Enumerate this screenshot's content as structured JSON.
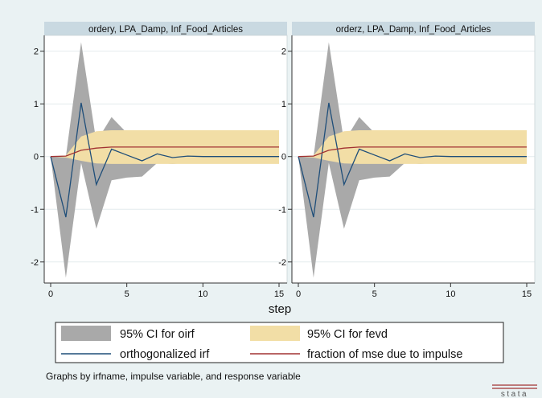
{
  "colors": {
    "background": "#eaf2f3",
    "panel_header": "#c9d9e1",
    "plot_bg": "#ffffff",
    "ci_oirf": "#a9a9a9",
    "ci_fevd": "#f2dea6",
    "oirf_line": "#1f4e79",
    "fevd_line": "#a23232",
    "grid": "#e4ecee"
  },
  "chart_data": {
    "type": "line",
    "xlabel": "step",
    "ylabel": "",
    "xlim": [
      0,
      15
    ],
    "ylim": [
      -2.4,
      2.3
    ],
    "xticks": [
      "0",
      "5",
      "10",
      "15"
    ],
    "yticks": [
      "-2",
      "-1",
      "0",
      "1",
      "2"
    ],
    "grid": true,
    "legend_position": "bottom",
    "note": "Graphs by irfname, impulse variable, and response variable",
    "watermark": "stata",
    "panels": [
      {
        "title": "ordery, LPA_Damp, Inf_Food_Articles"
      },
      {
        "title": "orderz, LPA_Damp, Inf_Food_Articles"
      }
    ],
    "x": [
      0,
      1,
      2,
      3,
      4,
      5,
      6,
      7,
      8,
      9,
      10,
      11,
      12,
      13,
      14,
      15
    ],
    "series": [
      {
        "name": "95% CI for oirf",
        "kind": "band",
        "color": "#a9a9a9",
        "upper": [
          0,
          0.0,
          2.17,
          0.28,
          0.75,
          0.45,
          0.22,
          0.25,
          0.12,
          0.12,
          0.08,
          0.06,
          0.05,
          0.05,
          0.04,
          0.04
        ],
        "lower": [
          0,
          -2.3,
          -0.12,
          -1.37,
          -0.45,
          -0.4,
          -0.38,
          -0.12,
          -0.14,
          -0.12,
          -0.09,
          -0.06,
          -0.05,
          -0.05,
          -0.04,
          -0.04
        ]
      },
      {
        "name": "95% CI for fevd",
        "kind": "band",
        "color": "#f2dea6",
        "upper": [
          0,
          0.02,
          0.38,
          0.48,
          0.5,
          0.5,
          0.5,
          0.5,
          0.5,
          0.5,
          0.5,
          0.5,
          0.5,
          0.5,
          0.5,
          0.5
        ],
        "lower": [
          0,
          -0.02,
          -0.08,
          -0.13,
          -0.14,
          -0.14,
          -0.14,
          -0.14,
          -0.14,
          -0.14,
          -0.14,
          -0.14,
          -0.14,
          -0.14,
          -0.14,
          -0.14
        ]
      },
      {
        "name": "orthogonalized irf",
        "kind": "line",
        "color": "#1f4e79",
        "values": [
          0,
          -1.15,
          1.02,
          -0.53,
          0.14,
          0.03,
          -0.08,
          0.05,
          -0.02,
          0.01,
          0.0,
          0.0,
          0.0,
          0.0,
          0.0,
          0.0
        ]
      },
      {
        "name": "fraction of mse due to impulse",
        "kind": "line",
        "color": "#a23232",
        "values": [
          0,
          0.01,
          0.12,
          0.16,
          0.18,
          0.18,
          0.18,
          0.18,
          0.18,
          0.18,
          0.18,
          0.18,
          0.18,
          0.18,
          0.18,
          0.18
        ]
      }
    ]
  }
}
